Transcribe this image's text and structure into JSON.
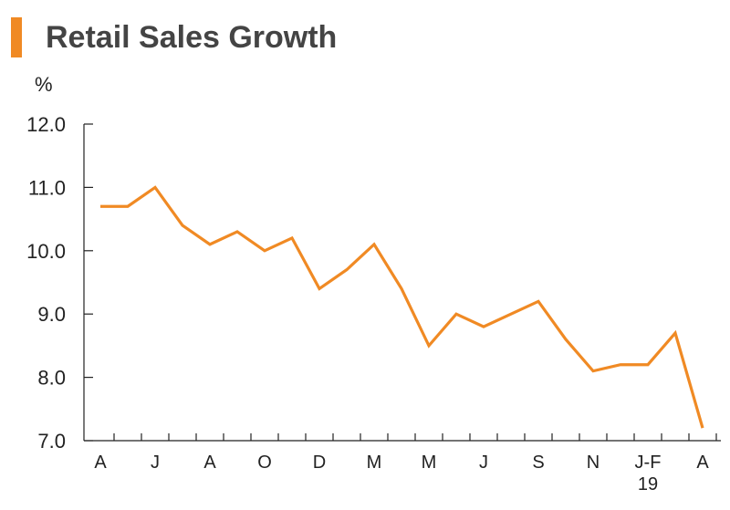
{
  "chart_data": {
    "type": "line",
    "title": "Retail Sales Growth",
    "ylabel": "%",
    "xlabel": "",
    "ylim": [
      7.0,
      12.0
    ],
    "yticks": [
      "7.0",
      "8.0",
      "9.0",
      "10.0",
      "11.0",
      "12.0"
    ],
    "line_color": "#f08a24",
    "grid": false,
    "x": [
      0,
      1,
      2,
      3,
      4,
      5,
      6,
      7,
      8,
      9,
      10,
      11,
      12,
      13,
      14,
      15,
      16,
      17,
      18,
      19,
      20,
      21,
      22
    ],
    "tick_labels": [
      {
        "x": 0,
        "label": "A"
      },
      {
        "x": 2,
        "label": "J"
      },
      {
        "x": 4,
        "label": "A"
      },
      {
        "x": 6,
        "label": "O"
      },
      {
        "x": 8,
        "label": "D"
      },
      {
        "x": 10,
        "label": "M"
      },
      {
        "x": 12,
        "label": "M"
      },
      {
        "x": 14,
        "label": "J"
      },
      {
        "x": 16,
        "label": "S"
      },
      {
        "x": 18,
        "label": "N"
      },
      {
        "x": 20,
        "label": "J-F",
        "sublabel": "19"
      },
      {
        "x": 22,
        "label": "A"
      }
    ],
    "series": [
      {
        "values": [
          10.7,
          10.7,
          11.0,
          10.4,
          10.1,
          10.3,
          10.0,
          10.2,
          9.4,
          9.7,
          10.1,
          9.4,
          8.5,
          9.0,
          8.8,
          9.0,
          9.2,
          8.6,
          8.1,
          8.2,
          8.2,
          8.7,
          7.2
        ]
      }
    ]
  }
}
